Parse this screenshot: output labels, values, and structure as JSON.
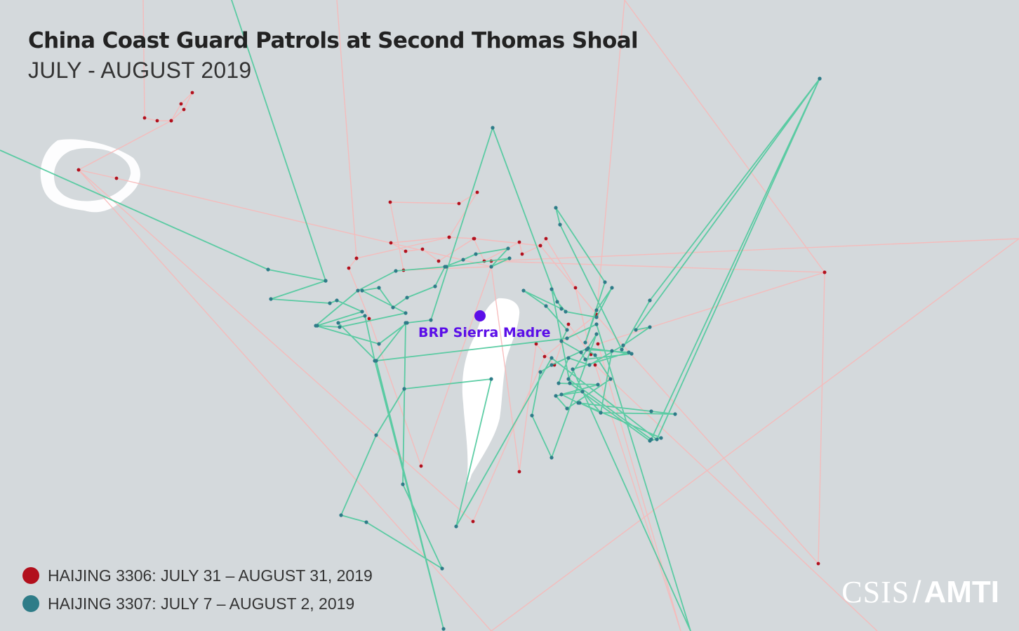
{
  "map": {
    "title": "China Coast Guard Patrols at Second Thomas Shoal",
    "subtitle": "JULY - AUGUST 2019",
    "background_color": "#d4d9dc",
    "land_color": "#ffffff",
    "feature": {
      "name": "BRP Sierra Madre",
      "color": "#5b0ee8"
    }
  },
  "legend": [
    {
      "label": "HAIJING 3306: JULY 31 – AUGUST 31, 2019",
      "color": "#b2101d"
    },
    {
      "label": "HAIJING 3307: JULY 7 – AUGUST 2, 2019",
      "color": "#2e7c88"
    }
  ],
  "tracks": {
    "haijing_3306_line_color": "#f7b8b8",
    "haijing_3307_line_color": "#4ec99c"
  },
  "branding": {
    "left": "CSIS",
    "slash": "/",
    "right": "AMTI"
  }
}
